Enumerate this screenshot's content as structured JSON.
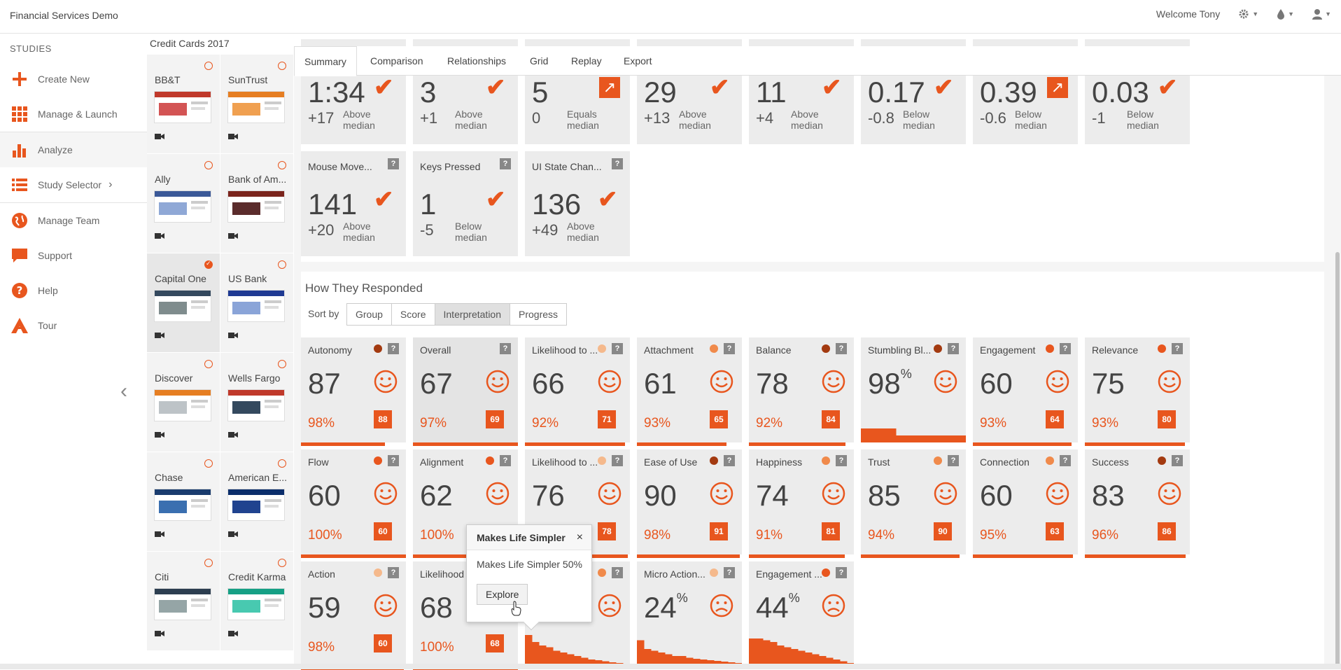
{
  "app": {
    "title": "Financial Services Demo",
    "welcome": "Welcome Tony"
  },
  "nav": {
    "studies_label": "STUDIES",
    "items": [
      {
        "label": "Create New",
        "icon": "plus-icon"
      },
      {
        "label": "Manage & Launch",
        "icon": "grid-icon"
      },
      {
        "label": "Analyze",
        "icon": "bar-chart-icon"
      },
      {
        "label": "Study Selector",
        "icon": "list-icon"
      },
      {
        "label": "Manage Team",
        "icon": "globe-icon"
      },
      {
        "label": "Support",
        "icon": "chat-icon"
      },
      {
        "label": "Help",
        "icon": "help-icon"
      },
      {
        "label": "Tour",
        "icon": "tour-icon"
      }
    ]
  },
  "studylist": {
    "title": "Credit Cards 2017",
    "studies": [
      {
        "name": "BB&T",
        "selected": false
      },
      {
        "name": "SunTrust",
        "selected": false
      },
      {
        "name": "Ally",
        "selected": false
      },
      {
        "name": "Bank of Am...",
        "selected": false
      },
      {
        "name": "Capital One",
        "selected": true
      },
      {
        "name": "US Bank",
        "selected": false
      },
      {
        "name": "Discover",
        "selected": false
      },
      {
        "name": "Wells Fargo",
        "selected": false
      },
      {
        "name": "Chase",
        "selected": false
      },
      {
        "name": "American E...",
        "selected": false
      },
      {
        "name": "Citi",
        "selected": false
      },
      {
        "name": "Credit Karma",
        "selected": false
      }
    ]
  },
  "tabs": [
    "Summary",
    "Comparison",
    "Relationships",
    "Grid",
    "Replay",
    "Export"
  ],
  "metrics_row1": [
    {
      "value": "1:34",
      "delta": "+17",
      "note1": "Above",
      "note2": "median",
      "icon": "check"
    },
    {
      "value": "3",
      "delta": "+1",
      "note1": "Above",
      "note2": "median",
      "icon": "check"
    },
    {
      "value": "5",
      "delta": "0",
      "note1": "Equals",
      "note2": "median",
      "icon": "arrow"
    },
    {
      "value": "29",
      "delta": "+13",
      "note1": "Above",
      "note2": "median",
      "icon": "check"
    },
    {
      "value": "11",
      "delta": "+4",
      "note1": "Above",
      "note2": "median",
      "icon": "check"
    },
    {
      "value": "0.17",
      "delta": "-0.8",
      "note1": "Below",
      "note2": "median",
      "icon": "check"
    },
    {
      "value": "0.39",
      "delta": "-0.6",
      "note1": "Below",
      "note2": "median",
      "icon": "arrow"
    },
    {
      "value": "0.03",
      "delta": "-1",
      "note1": "Below",
      "note2": "median",
      "icon": "check"
    }
  ],
  "metrics_row2": [
    {
      "name": "Mouse Move...",
      "value": "141",
      "delta": "+20",
      "note1": "Above",
      "note2": "median"
    },
    {
      "name": "Keys Pressed",
      "value": "1",
      "delta": "-5",
      "note1": "Below",
      "note2": "median"
    },
    {
      "name": "UI State Chan...",
      "value": "136",
      "delta": "+49",
      "note1": "Above",
      "note2": "median"
    }
  ],
  "responded": {
    "title": "How They Responded",
    "sort_label": "Sort by",
    "sort_options": [
      "Group",
      "Score",
      "Interpretation",
      "Progress"
    ],
    "sort_active": "Interpretation",
    "question_mark": "?",
    "cards": [
      {
        "name": "Autonomy",
        "value": "87",
        "pct": "98%",
        "badge": "88",
        "dot": "#a33a10",
        "mood": "happy",
        "bar": 0.8
      },
      {
        "name": "Overall",
        "value": "67",
        "pct": "97%",
        "badge": "69",
        "dot": "",
        "mood": "happy",
        "bar": 1.0
      },
      {
        "name": "Likelihood to ...",
        "value": "66",
        "pct": "92%",
        "badge": "71",
        "dot": "#f5b98c",
        "mood": "happy",
        "bar": 0.95
      },
      {
        "name": "Attachment",
        "value": "61",
        "pct": "93%",
        "badge": "65",
        "dot": "#f08a4b",
        "mood": "happy",
        "bar": 0.85
      },
      {
        "name": "Balance",
        "value": "78",
        "pct": "92%",
        "badge": "84",
        "dot": "#a33a10",
        "mood": "happy",
        "bar": 0.92
      },
      {
        "name": "Stumbling Bl...",
        "value": "98",
        "unit": "%",
        "dot": "#a33a10",
        "mood": "happy",
        "hist": [
          0.4,
          0.4,
          0.4,
          0.4,
          0.4,
          0.2,
          0.2,
          0.2,
          0.2,
          0.2,
          0.2,
          0.2,
          0.2,
          0.2,
          0.2
        ]
      },
      {
        "name": "Engagement",
        "value": "60",
        "pct": "93%",
        "badge": "64",
        "dot": "#e8561e",
        "mood": "happy",
        "bar": 0.94
      },
      {
        "name": "Relevance",
        "value": "75",
        "pct": "93%",
        "badge": "80",
        "dot": "#e8561e",
        "mood": "happy",
        "bar": 0.95
      },
      {
        "name": "Flow",
        "value": "60",
        "pct": "100%",
        "badge": "60",
        "dot": "#e8561e",
        "mood": "happy",
        "bar": 1.0
      },
      {
        "name": "Alignment",
        "value": "62",
        "pct": "100%",
        "badge": "",
        "dot": "#e8561e",
        "mood": "happy",
        "bar": 1.0
      },
      {
        "name": "Likelihood to ...",
        "value": "76",
        "pct": "",
        "badge": "78",
        "dot": "#f5b98c",
        "mood": "happy",
        "bar": 0.98
      },
      {
        "name": "Ease of Use",
        "value": "90",
        "pct": "98%",
        "badge": "91",
        "dot": "#a33a10",
        "mood": "happy",
        "bar": 0.98
      },
      {
        "name": "Happiness",
        "value": "74",
        "pct": "91%",
        "badge": "81",
        "dot": "#f08a4b",
        "mood": "happy",
        "bar": 0.91
      },
      {
        "name": "Trust",
        "value": "85",
        "pct": "94%",
        "badge": "90",
        "dot": "#f08a4b",
        "mood": "happy",
        "bar": 0.94
      },
      {
        "name": "Connection",
        "value": "60",
        "pct": "95%",
        "badge": "63",
        "dot": "#f08a4b",
        "mood": "happy",
        "bar": 0.95
      },
      {
        "name": "Success",
        "value": "83",
        "pct": "96%",
        "badge": "86",
        "dot": "#a33a10",
        "mood": "happy",
        "bar": 0.96
      },
      {
        "name": "Action",
        "value": "59",
        "pct": "98%",
        "badge": "60",
        "dot": "#f5b98c",
        "mood": "happy",
        "bar": 0.98
      },
      {
        "name": "Likelihood",
        "value": "68",
        "pct": "100%",
        "badge": "68",
        "dot": "",
        "mood": "happy",
        "bar": 1.0
      },
      {
        "name": "",
        "value": "",
        "dot": "#f08a4b",
        "mood": "sad",
        "hist": [
          0.9,
          0.7,
          0.6,
          0.55,
          0.45,
          0.4,
          0.35,
          0.3,
          0.25,
          0.2,
          0.18,
          0.15,
          0.12,
          0.1,
          0.08
        ]
      },
      {
        "name": "Micro Action...",
        "value": "24",
        "unit": "%",
        "dot": "#f5b98c",
        "mood": "sad",
        "hist": [
          0.75,
          0.5,
          0.45,
          0.4,
          0.35,
          0.3,
          0.3,
          0.25,
          0.22,
          0.2,
          0.18,
          0.16,
          0.14,
          0.12,
          0.1
        ]
      },
      {
        "name": "Engagement ...",
        "value": "44",
        "unit": "%",
        "dot": "#e8561e",
        "mood": "sad",
        "hist": [
          0.8,
          0.8,
          0.75,
          0.7,
          0.6,
          0.55,
          0.5,
          0.45,
          0.4,
          0.35,
          0.3,
          0.25,
          0.2,
          0.15,
          0.1
        ]
      }
    ]
  },
  "popover": {
    "title": "Makes Life Simpler",
    "close": "×",
    "body": "Makes Life Simpler 50%",
    "button": "Explore"
  },
  "colors": {
    "accent": "#e8561e",
    "card_bg": "#ececec"
  }
}
